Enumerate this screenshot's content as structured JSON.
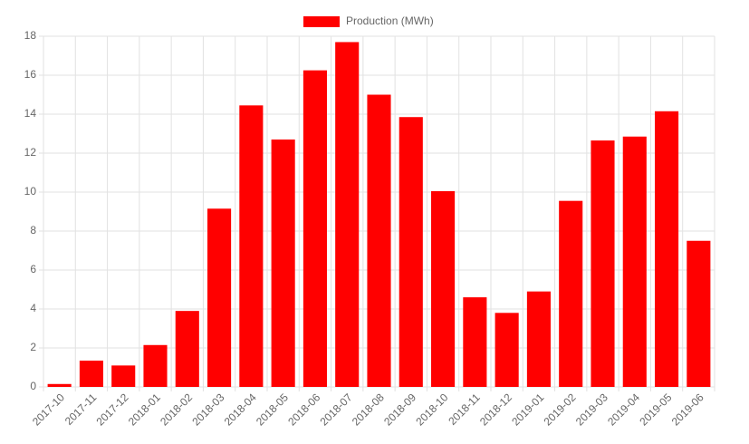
{
  "chart_data": {
    "type": "bar",
    "categories": [
      "2017-10",
      "2017-11",
      "2017-12",
      "2018-01",
      "2018-02",
      "2018-03",
      "2018-04",
      "2018-05",
      "2018-06",
      "2018-07",
      "2018-08",
      "2018-09",
      "2018-10",
      "2018-11",
      "2018-12",
      "2019-01",
      "2019-02",
      "2019-03",
      "2019-04",
      "2019-05",
      "2019-06"
    ],
    "series": [
      {
        "name": "Production (MWh)",
        "color": "#ff0000",
        "values": [
          0.15,
          1.35,
          1.1,
          2.15,
          3.9,
          9.15,
          14.45,
          12.7,
          16.25,
          17.7,
          15.0,
          13.85,
          10.05,
          4.6,
          3.8,
          4.9,
          9.55,
          12.65,
          12.85,
          14.15,
          7.5
        ]
      }
    ],
    "ylim": [
      0,
      18
    ],
    "yticks": [
      0,
      2,
      4,
      6,
      8,
      10,
      12,
      14,
      16,
      18
    ],
    "grid": true,
    "legend": "top"
  }
}
